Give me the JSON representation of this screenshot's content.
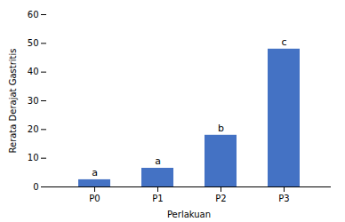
{
  "chart_data": {
    "type": "bar",
    "categories": [
      "P0",
      "P1",
      "P2",
      "P3"
    ],
    "values": [
      2.5,
      6.5,
      18.0,
      48.0
    ],
    "annotations": [
      "a",
      "a",
      "b",
      "c"
    ],
    "color": "#4472c4",
    "xlabel": "Perlakuan",
    "ylabel": "Rerata Derajat Gastritis",
    "ylim": [
      0,
      60
    ],
    "yticks": [
      0,
      10,
      20,
      30,
      40,
      50,
      60
    ],
    "grid": false
  }
}
